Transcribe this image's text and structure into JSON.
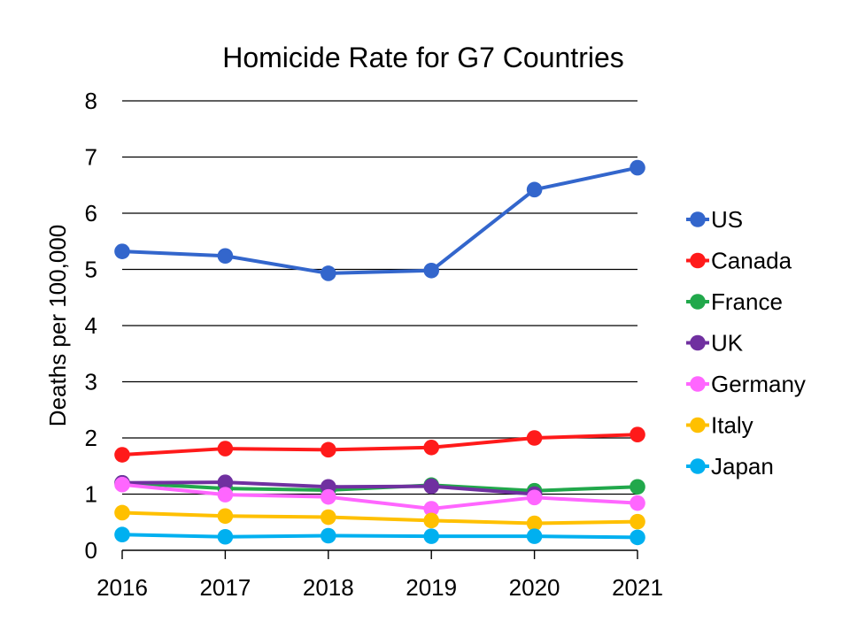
{
  "chart_data": {
    "type": "line",
    "title": "Homicide Rate for G7 Countries",
    "xlabel": "",
    "ylabel": "Deaths per 100,000",
    "x": [
      "2016",
      "2017",
      "2018",
      "2019",
      "2020",
      "2021"
    ],
    "ylim": [
      0,
      8
    ],
    "yticks": [
      "0",
      "1",
      "2",
      "3",
      "4",
      "5",
      "6",
      "7",
      "8"
    ],
    "grid": true,
    "legend_position": "right",
    "series": [
      {
        "name": "US",
        "color": "#3366CC",
        "values": [
          5.32,
          5.24,
          4.93,
          4.98,
          6.42,
          6.81
        ]
      },
      {
        "name": "Canada",
        "color": "#FF1A1A",
        "values": [
          1.7,
          1.81,
          1.79,
          1.83,
          2.0,
          2.06
        ]
      },
      {
        "name": "France",
        "color": "#21A84B",
        "values": [
          1.2,
          1.1,
          1.07,
          1.16,
          1.06,
          1.13
        ]
      },
      {
        "name": "UK",
        "color": "#7030A0",
        "values": [
          1.2,
          1.21,
          1.13,
          1.14,
          1.0,
          null
        ]
      },
      {
        "name": "Germany",
        "color": "#FF66FF",
        "values": [
          1.17,
          0.99,
          0.95,
          0.74,
          0.94,
          0.84
        ]
      },
      {
        "name": "Italy",
        "color": "#FFC000",
        "values": [
          0.67,
          0.61,
          0.59,
          0.53,
          0.48,
          0.51
        ]
      },
      {
        "name": "Japan",
        "color": "#00B0F0",
        "values": [
          0.28,
          0.24,
          0.26,
          0.25,
          0.25,
          0.23
        ]
      }
    ]
  }
}
